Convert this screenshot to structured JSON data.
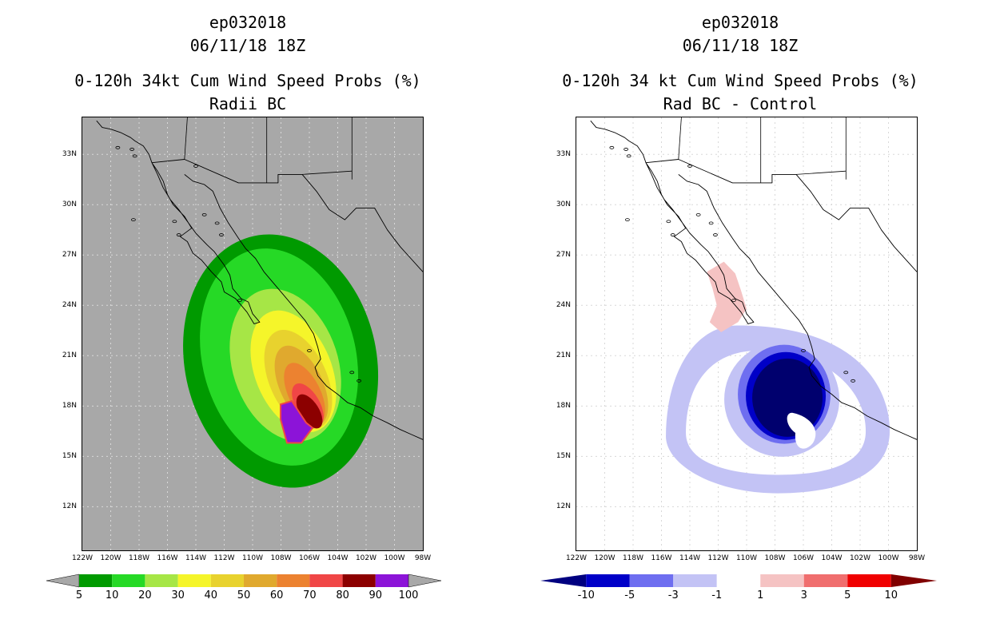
{
  "left": {
    "title_lines": [
      "ep032018",
      "06/11/18 18Z",
      "0-120h 34kt Cum Wind Speed Probs (%)",
      "Radii BC"
    ],
    "colorbar": {
      "labels": [
        "5",
        "10",
        "20",
        "30",
        "40",
        "50",
        "60",
        "70",
        "80",
        "90",
        "100"
      ],
      "colors": [
        "#009a00",
        "#26d926",
        "#a6e646",
        "#f5f52a",
        "#e8d22e",
        "#e0a92e",
        "#ec8230",
        "#f04646",
        "#8c0000",
        "#8c14d8"
      ],
      "arrow_color": "#a8a8a8"
    }
  },
  "right": {
    "title_lines": [
      "ep032018",
      "06/11/18 18Z",
      "0-120h 34 kt Cum Wind Speed Probs (%)",
      "Rad BC - Control"
    ],
    "colorbar": {
      "labels": [
        "-10",
        "-5",
        "-3",
        "-1",
        "1",
        "3",
        "5",
        "10"
      ],
      "colors": [
        "#0000c8",
        "#6e6ef0",
        "#c3c3f5",
        "#ffffff",
        "#f5c3c3",
        "#f06e6e",
        "#f00000"
      ],
      "low_arrow_color": "#000080",
      "high_arrow_color": "#800000"
    }
  },
  "axes": {
    "lat_labels": [
      "33N",
      "30N",
      "27N",
      "24N",
      "21N",
      "18N",
      "15N",
      "12N"
    ],
    "lon_labels": [
      "122W",
      "120W",
      "118W",
      "116W",
      "114W",
      "112W",
      "110W",
      "108W",
      "106W",
      "104W",
      "102W",
      "100W",
      "98W"
    ]
  },
  "map": {
    "lon_range": [
      -122,
      -98
    ],
    "lat_range": [
      9.4,
      35.2
    ],
    "storm_center": [
      -107.8,
      17.2
    ],
    "colors": {
      "land_bg": "#a8a8a8",
      "grid": "#d8d8d8",
      "coast": "#000000"
    }
  }
}
